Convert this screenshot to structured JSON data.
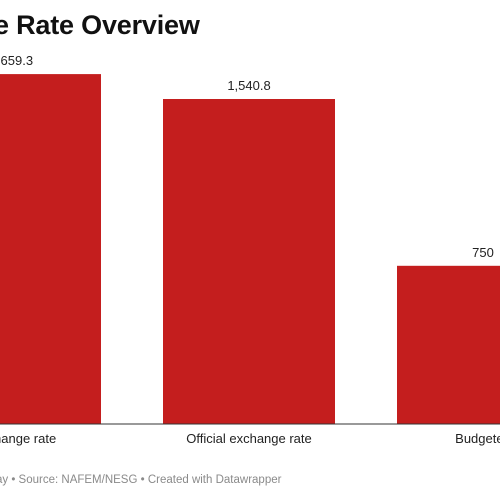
{
  "chart_data": {
    "type": "bar",
    "title": "e Rate Overview",
    "categories": [
      "exchange rate",
      "Official exchange rate",
      "Budgeted"
    ],
    "value_labels": [
      ",659.3",
      "1,540.8",
      "750"
    ],
    "values": [
      1659.3,
      1540.8,
      750
    ],
    "ylim": [
      0,
      1800
    ],
    "grid": false,
    "legend": "none",
    "xlabel": "",
    "ylabel": ""
  },
  "footer": "ay • Source: NAFEM/NESG • Created with Datawrapper",
  "colors": {
    "bar": "#c41e1e",
    "baseline": "#333333",
    "text": "#222222",
    "footer": "#8a8a8a"
  }
}
